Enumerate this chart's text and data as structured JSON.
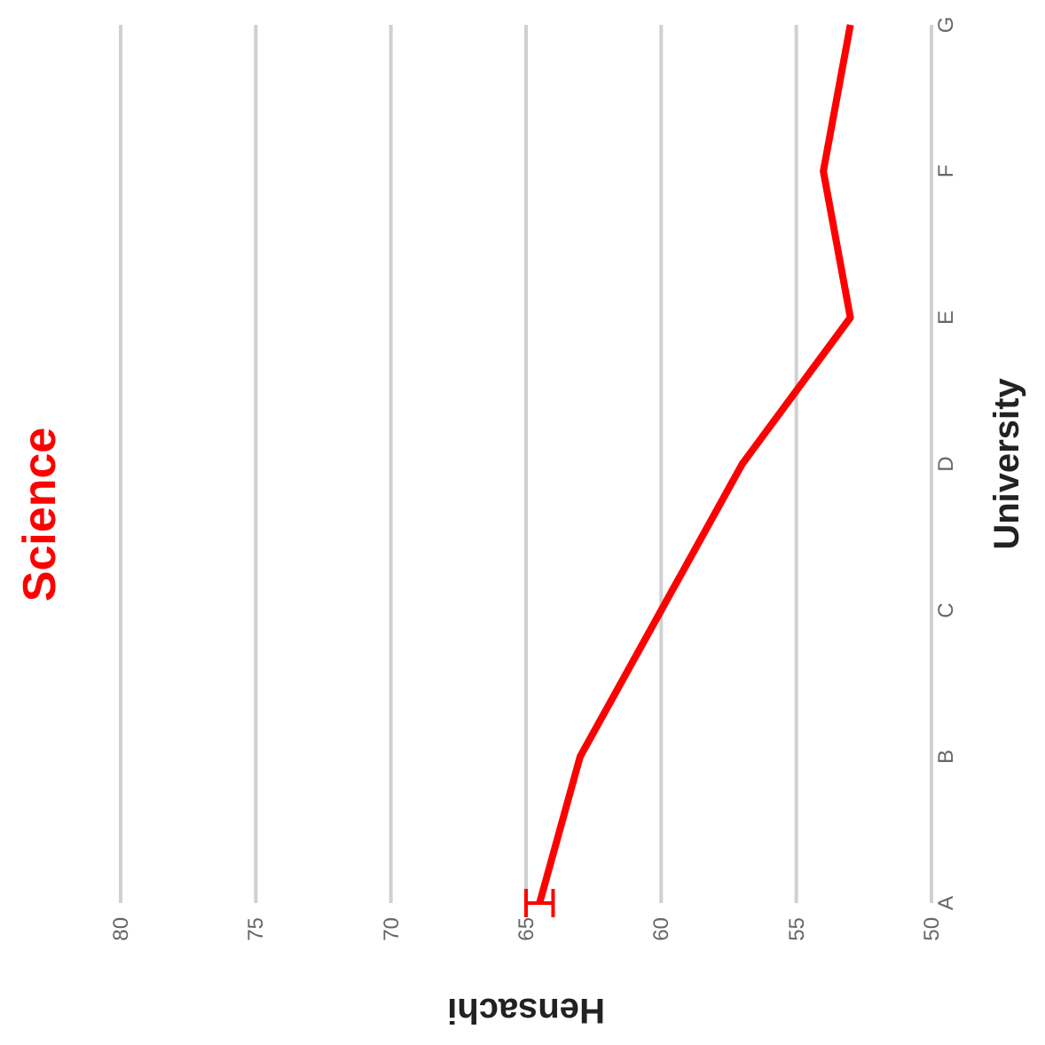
{
  "chart_data": {
    "type": "line",
    "orientation": "horizontal",
    "title": "Science",
    "xlabel": "Hensachi",
    "ylabel": "University",
    "categories": [
      "G",
      "F",
      "E",
      "D",
      "C",
      "B",
      "A"
    ],
    "series": [
      {
        "color": "#ff0000",
        "values": [
          53,
          54,
          53,
          57,
          60,
          63,
          64.5
        ],
        "errors": [
          null,
          null,
          null,
          null,
          null,
          null,
          0.5
        ]
      }
    ],
    "xlim": [
      80,
      50
    ],
    "xticks": [
      80,
      75,
      70,
      65,
      60,
      55,
      50
    ],
    "grid": "x",
    "marker": "none",
    "line_style": "solid"
  }
}
